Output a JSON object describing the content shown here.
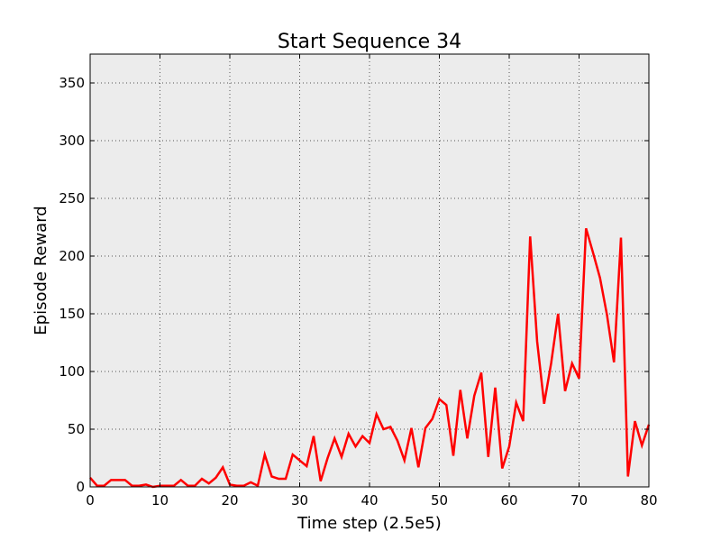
{
  "chart_data": {
    "type": "line",
    "title": "Start Sequence 34",
    "xlabel": "Time step (2.5e5)",
    "ylabel": "Episode Reward",
    "xlim": [
      0,
      80
    ],
    "ylim": [
      0,
      375
    ],
    "xticks": [
      0,
      10,
      20,
      30,
      40,
      50,
      60,
      70,
      80
    ],
    "yticks": [
      0,
      50,
      100,
      150,
      200,
      250,
      300,
      350
    ],
    "grid": true,
    "colors": {
      "background": "#ececec",
      "line": "#ff0000",
      "grid": "#555555",
      "axis": "#000000"
    },
    "series": [
      {
        "x": [
          0,
          1,
          2,
          3,
          4,
          5,
          6,
          7,
          8,
          9,
          10,
          11,
          12,
          13,
          14,
          15,
          16,
          17,
          18,
          19,
          20,
          21,
          22,
          23,
          24,
          25,
          26,
          27,
          28,
          29,
          30,
          31,
          32,
          33,
          34,
          35,
          36,
          37,
          38,
          39,
          40,
          41,
          42,
          43,
          44,
          45,
          46,
          47,
          48,
          49,
          50,
          51,
          52,
          53,
          54,
          55,
          56,
          57,
          58,
          59,
          60,
          61,
          62,
          63,
          64,
          65,
          66,
          67,
          68,
          69,
          70,
          71,
          72,
          73,
          74,
          75,
          76,
          77,
          78,
          79,
          80
        ],
        "values": [
          8,
          1,
          1,
          6,
          6,
          6,
          1,
          1,
          2,
          0,
          1,
          1,
          1,
          6,
          1,
          1,
          7,
          3,
          8,
          17,
          2,
          1,
          1,
          4,
          1,
          28,
          9,
          7,
          7,
          28,
          23,
          18,
          44,
          5,
          25,
          42,
          26,
          46,
          35,
          44,
          38,
          63,
          50,
          52,
          40,
          23,
          51,
          17,
          51,
          59,
          76,
          71,
          27,
          84,
          42,
          79,
          99,
          26,
          86,
          16,
          35,
          73,
          57,
          217,
          126,
          72,
          107,
          150,
          83,
          107,
          94,
          224,
          203,
          181,
          149,
          108,
          216,
          9,
          57,
          36,
          54
        ]
      }
    ]
  }
}
